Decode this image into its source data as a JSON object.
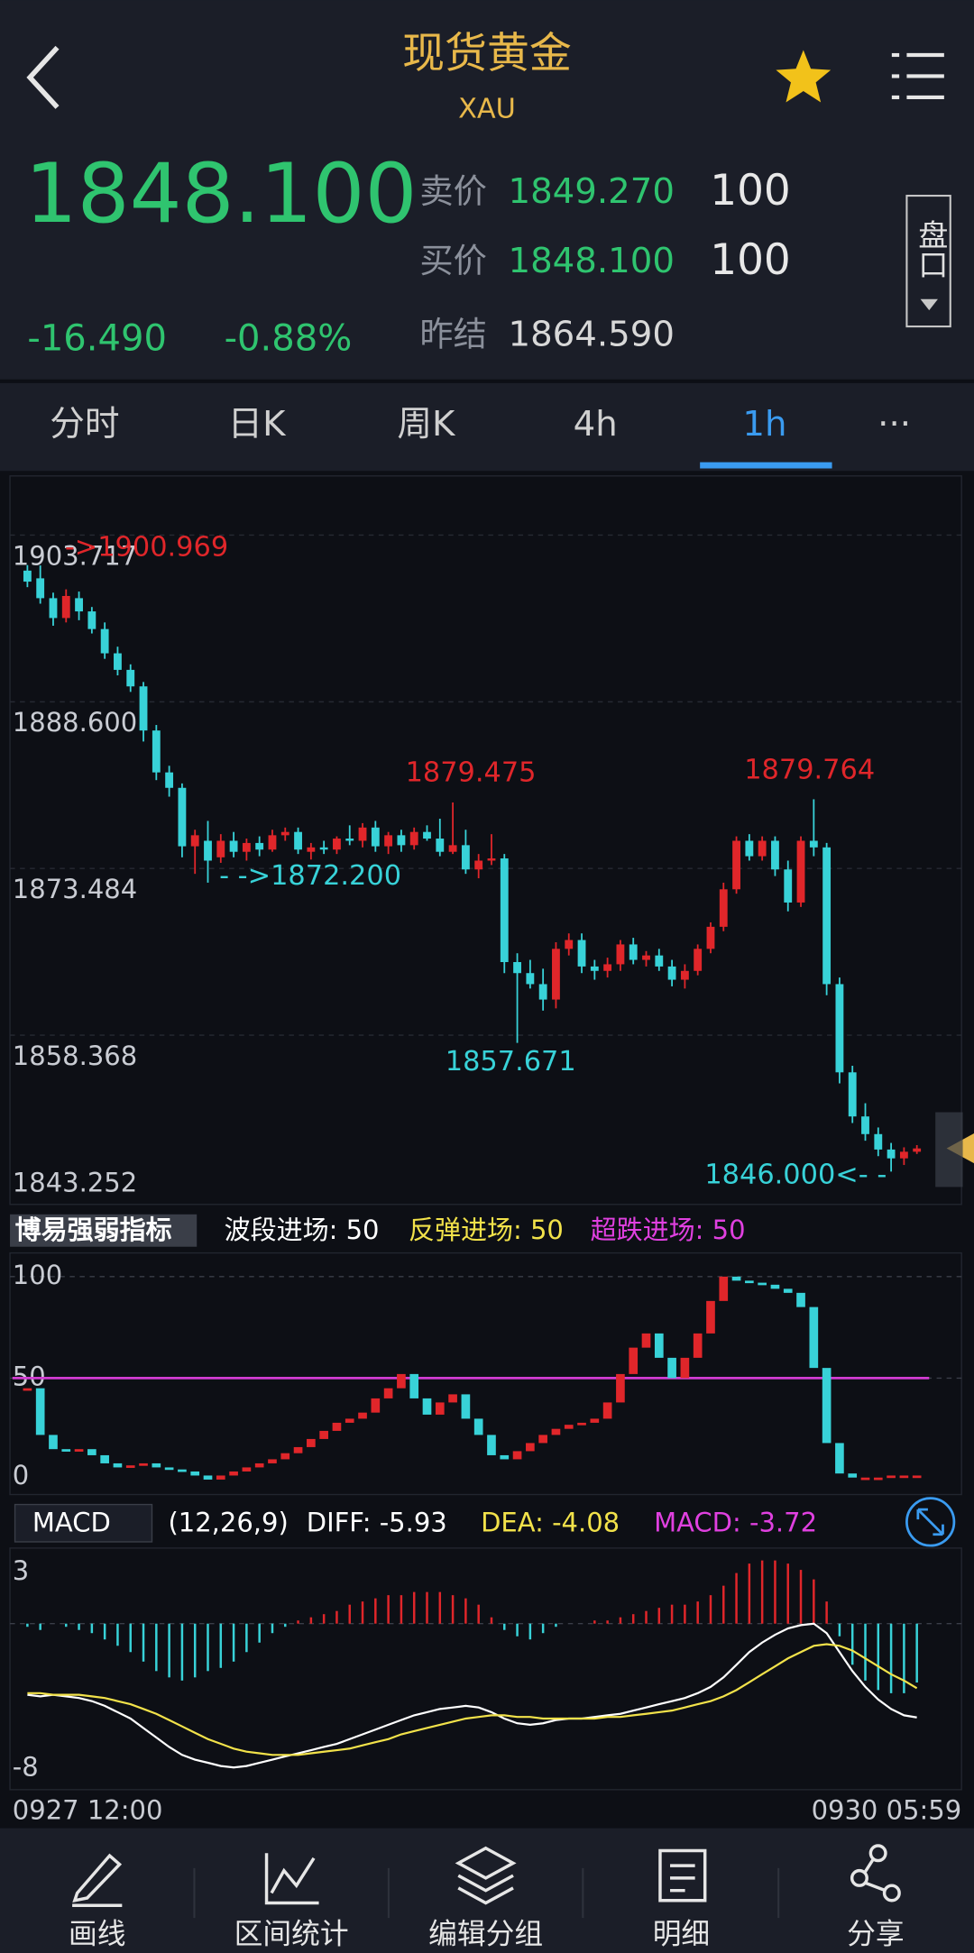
{
  "header": {
    "title": "现货黄金",
    "symbol": "XAU"
  },
  "quote": {
    "last": "1848.100",
    "change": "-16.490",
    "change_pct": "-0.88%",
    "ask_label": "卖价",
    "ask": "1849.270",
    "ask_size": "100",
    "bid_label": "买价",
    "bid": "1848.100",
    "bid_size": "100",
    "prev_label": "昨结",
    "prev_settle": "1864.590",
    "depth_button": "盘口"
  },
  "tabs": [
    "分时",
    "日K",
    "周K",
    "4h",
    "1h",
    "···"
  ],
  "active_tab": 4,
  "price_chart": {
    "type": "candlestick",
    "up_color": "#e0262a",
    "down_color": "#38d2d8",
    "ylim": [
      1843.252,
      1905.7
    ],
    "yticks": [
      1903.717,
      {
        "value": 1888.6,
        "label": "1888.600"
      },
      1873.484,
      1858.368,
      1843.252
    ],
    "open": [
      1900.5,
      1899.8,
      1898.0,
      1896.2,
      1898.0,
      1896.8,
      1895.2,
      1893.0,
      1891.5,
      1890.0,
      1886.0,
      1882.2,
      1880.8,
      1875.5,
      1876.0,
      1874.5,
      1876.0,
      1875.0,
      1875.8,
      1875.2,
      1876.5,
      1876.8,
      1875.0,
      1875.4,
      1875.2,
      1876.2,
      1876.0,
      1877.2,
      1875.5,
      1876.5,
      1875.6,
      1876.8,
      1876.2,
      1875.0,
      1875.6,
      1873.4,
      1874.2,
      1874.4,
      1865.0,
      1864.0,
      1863.0,
      1861.6,
      1866.2,
      1867.0,
      1864.6,
      1864.2,
      1864.8,
      1866.6,
      1865.2,
      1865.6,
      1864.6,
      1863.4,
      1864.2,
      1866.2,
      1868.2,
      1871.6,
      1876.0,
      1874.6,
      1876.0,
      1873.4,
      1870.4,
      1876.0,
      1875.4,
      1863.0,
      1855.0,
      1851.0,
      1849.4,
      1848.0,
      1847.2,
      1847.8
    ],
    "high": [
      1901.0,
      1900.969,
      1898.5,
      1898.8,
      1898.6,
      1897.2,
      1895.8,
      1893.6,
      1892.0,
      1890.4,
      1886.5,
      1882.8,
      1881.2,
      1877.0,
      1877.8,
      1876.6,
      1876.8,
      1876.2,
      1876.4,
      1877.0,
      1877.2,
      1877.2,
      1875.8,
      1876.0,
      1876.4,
      1877.4,
      1877.6,
      1877.8,
      1876.8,
      1877.0,
      1877.2,
      1877.4,
      1878.0,
      1879.475,
      1877.0,
      1874.8,
      1876.6,
      1874.8,
      1865.8,
      1865.2,
      1864.4,
      1866.8,
      1867.6,
      1867.6,
      1865.2,
      1865.4,
      1867.0,
      1867.2,
      1866.0,
      1866.2,
      1865.2,
      1864.8,
      1866.6,
      1868.6,
      1872.2,
      1876.4,
      1876.6,
      1876.4,
      1876.4,
      1874.2,
      1876.4,
      1879.764,
      1875.8,
      1863.6,
      1855.6,
      1852.2,
      1850.0,
      1848.6,
      1848.2,
      1848.4
    ],
    "low": [
      1899.0,
      1897.5,
      1895.5,
      1895.8,
      1896.0,
      1894.8,
      1892.5,
      1891.0,
      1889.5,
      1885.0,
      1881.5,
      1880.0,
      1874.5,
      1873.0,
      1872.2,
      1874.0,
      1874.5,
      1874.2,
      1874.6,
      1875.0,
      1876.0,
      1874.8,
      1874.3,
      1874.8,
      1874.8,
      1875.6,
      1875.4,
      1875.0,
      1874.8,
      1875.0,
      1875.2,
      1876.0,
      1874.6,
      1874.8,
      1873.0,
      1872.6,
      1873.8,
      1864.0,
      1857.671,
      1862.6,
      1860.6,
      1860.8,
      1865.6,
      1864.0,
      1863.4,
      1863.6,
      1864.2,
      1864.8,
      1864.6,
      1864.2,
      1862.8,
      1862.6,
      1863.8,
      1865.8,
      1867.8,
      1871.2,
      1874.2,
      1874.2,
      1872.8,
      1869.6,
      1870.0,
      1874.6,
      1862.0,
      1854.0,
      1850.4,
      1848.8,
      1847.4,
      1846.0,
      1846.6,
      1847.6
    ],
    "close": [
      1899.5,
      1898.0,
      1896.2,
      1898.2,
      1896.8,
      1895.2,
      1893.0,
      1891.5,
      1890.0,
      1886.0,
      1882.2,
      1880.8,
      1875.5,
      1876.5,
      1874.2,
      1876.0,
      1875.0,
      1875.8,
      1875.2,
      1876.5,
      1876.8,
      1875.2,
      1875.4,
      1875.2,
      1876.2,
      1876.0,
      1877.2,
      1875.5,
      1876.5,
      1875.6,
      1876.8,
      1876.2,
      1875.0,
      1875.6,
      1873.4,
      1874.2,
      1874.4,
      1865.0,
      1864.0,
      1863.0,
      1861.6,
      1866.2,
      1867.0,
      1864.6,
      1864.2,
      1864.8,
      1866.6,
      1865.2,
      1865.6,
      1864.6,
      1863.4,
      1864.2,
      1866.2,
      1868.2,
      1871.6,
      1876.0,
      1874.6,
      1876.0,
      1873.4,
      1870.4,
      1876.0,
      1875.4,
      1863.0,
      1855.0,
      1851.0,
      1849.4,
      1848.0,
      1847.2,
      1847.8,
      1848.1
    ],
    "annotations": [
      {
        "text": "->1900.969",
        "color": "#e0262a"
      },
      {
        "text": "1879.475",
        "color": "#e0262a"
      },
      {
        "text": "- ->1872.200",
        "color": "#38d2d8"
      },
      {
        "text": "1857.671",
        "color": "#38d2d8"
      },
      {
        "text": "1879.764",
        "color": "#e0262a"
      },
      {
        "text": "1846.000<- -",
        "color": "#38d2d8"
      }
    ],
    "x_labels": [
      "0927 12:00",
      "0930 05:59"
    ]
  },
  "indicator": {
    "type": "bar",
    "title": "博易强弱指标",
    "up_color": "#e0262a",
    "down_color": "#38d2d8",
    "legend": [
      {
        "text": "波段进场: 50",
        "color": "#ffffff"
      },
      {
        "text": "反弹进场: 50",
        "color": "#f2e24a"
      },
      {
        "text": "超跌进场: 50",
        "color": "#e040e0"
      }
    ],
    "signal_line": 50,
    "signal_color": "#d23cd2",
    "ylim": [
      0,
      100
    ],
    "yticks": [
      0,
      50,
      100
    ],
    "values": [
      45,
      22,
      15,
      14,
      15,
      12,
      8,
      6,
      7,
      8,
      6,
      5,
      4,
      2,
      0,
      2,
      4,
      6,
      8,
      10,
      13,
      16,
      20,
      24,
      28,
      30,
      33,
      40,
      45,
      52,
      40,
      32,
      38,
      42,
      30,
      22,
      12,
      10,
      14,
      18,
      22,
      25,
      27,
      28,
      30,
      38,
      52,
      65,
      72,
      60,
      50,
      60,
      72,
      88,
      100,
      98,
      97,
      96,
      94,
      92,
      85,
      55,
      18,
      3,
      1,
      1,
      1,
      2,
      2,
      2
    ]
  },
  "macd": {
    "type": "macd",
    "title": "MACD",
    "params": "(12,26,9)",
    "up_color": "#e0262a",
    "down_color": "#38d2d8",
    "diff_color": "#ffffff",
    "dea_color": "#f2e24a",
    "labels": [
      {
        "text": "DIFF: -5.93",
        "color": "#ffffff"
      },
      {
        "text": "DEA: -4.08",
        "color": "#f2e24a"
      },
      {
        "text": "MACD: -3.72",
        "color": "#e040e0"
      }
    ],
    "ylim": [
      -10.5,
      4.7
    ],
    "yticks": [
      3,
      -8
    ],
    "diff": [
      -4.5,
      -4.6,
      -4.5,
      -4.6,
      -4.7,
      -4.9,
      -5.2,
      -5.6,
      -6.0,
      -6.6,
      -7.2,
      -7.8,
      -8.3,
      -8.6,
      -8.8,
      -9.0,
      -9.1,
      -9.0,
      -8.8,
      -8.6,
      -8.4,
      -8.2,
      -8.0,
      -7.8,
      -7.6,
      -7.3,
      -7.0,
      -6.7,
      -6.4,
      -6.1,
      -5.8,
      -5.6,
      -5.4,
      -5.3,
      -5.2,
      -5.3,
      -5.6,
      -6.0,
      -6.3,
      -6.4,
      -6.3,
      -6.1,
      -6.0,
      -6.0,
      -5.9,
      -5.8,
      -5.7,
      -5.5,
      -5.3,
      -5.1,
      -4.9,
      -4.7,
      -4.4,
      -4.0,
      -3.4,
      -2.6,
      -1.8,
      -1.2,
      -0.7,
      -0.3,
      -0.1,
      0.0,
      -0.6,
      -1.8,
      -3.0,
      -4.0,
      -4.8,
      -5.4,
      -5.8,
      -5.93
    ],
    "dea": [
      -4.4,
      -4.4,
      -4.5,
      -4.5,
      -4.5,
      -4.6,
      -4.7,
      -4.9,
      -5.1,
      -5.4,
      -5.7,
      -6.1,
      -6.5,
      -6.9,
      -7.3,
      -7.6,
      -7.9,
      -8.1,
      -8.2,
      -8.3,
      -8.3,
      -8.3,
      -8.2,
      -8.1,
      -8.0,
      -7.9,
      -7.7,
      -7.5,
      -7.3,
      -7.0,
      -6.8,
      -6.6,
      -6.4,
      -6.2,
      -6.0,
      -5.9,
      -5.8,
      -5.8,
      -5.9,
      -5.9,
      -6.0,
      -6.0,
      -6.0,
      -6.0,
      -6.0,
      -5.9,
      -5.9,
      -5.8,
      -5.7,
      -5.6,
      -5.5,
      -5.3,
      -5.1,
      -4.9,
      -4.6,
      -4.2,
      -3.7,
      -3.2,
      -2.7,
      -2.2,
      -1.8,
      -1.4,
      -1.3,
      -1.4,
      -1.7,
      -2.2,
      -2.7,
      -3.2,
      -3.6,
      -4.08
    ],
    "macd": [
      -0.2,
      -0.4,
      0,
      -0.2,
      -0.4,
      -0.6,
      -1.0,
      -1.4,
      -1.8,
      -2.4,
      -3.0,
      -3.4,
      -3.6,
      -3.4,
      -3.0,
      -2.8,
      -2.4,
      -1.8,
      -1.2,
      -0.6,
      -0.2,
      0.2,
      0.4,
      0.6,
      0.8,
      1.2,
      1.4,
      1.6,
      1.8,
      1.8,
      2.0,
      2.0,
      2.0,
      1.8,
      1.6,
      1.2,
      0.4,
      -0.4,
      -0.8,
      -1.0,
      -0.6,
      -0.2,
      0,
      0,
      0.2,
      0.2,
      0.4,
      0.6,
      0.8,
      1.0,
      1.2,
      1.2,
      1.4,
      1.8,
      2.4,
      3.2,
      3.8,
      4.0,
      4.0,
      3.8,
      3.4,
      2.8,
      1.4,
      -0.8,
      -2.6,
      -3.6,
      -4.2,
      -4.4,
      -4.4,
      -3.72
    ]
  },
  "nav": [
    "画线",
    "区间统计",
    "编辑分组",
    "明细",
    "分享"
  ]
}
